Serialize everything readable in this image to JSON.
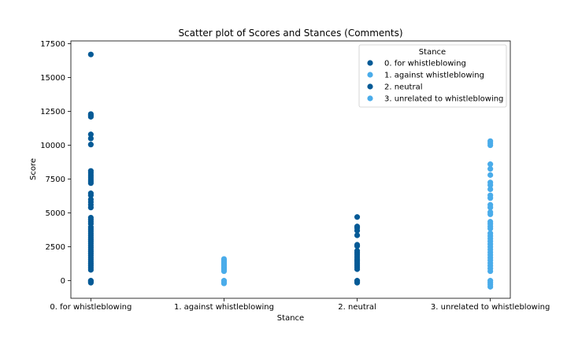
{
  "chart_data": {
    "type": "scatter",
    "title": "Scatter plot of Scores and Stances (Comments)",
    "xlabel": "Stance",
    "ylabel": "Score",
    "categories": [
      "0. for whistleblowing",
      "1. against whistleblowing",
      "2. neutral",
      "3. unrelated to whistleblowing"
    ],
    "ylim": [
      -1300,
      17700
    ],
    "yticks": [
      0,
      2500,
      5000,
      7500,
      10000,
      12500,
      15000,
      17500
    ],
    "ytick_labels": [
      "0",
      "2500",
      "5000",
      "7500",
      "10000",
      "12500",
      "15000",
      "17500"
    ],
    "grid": false,
    "legend": {
      "title": "Stance",
      "placement": "top-right"
    },
    "series": [
      {
        "name": "0. for whistleblowing",
        "color": "#045a96",
        "x": 0,
        "values": [
          16700,
          12300,
          12200,
          12100,
          10800,
          10500,
          10050,
          8100,
          7950,
          7800,
          7650,
          7500,
          7350,
          7200,
          6450,
          6300,
          6000,
          5800,
          5600,
          5400,
          4650,
          4500,
          4350,
          4200,
          3950,
          3800,
          3650,
          3500,
          3350,
          3200,
          3050,
          2900,
          2750,
          2600,
          2450,
          2300,
          2150,
          2000,
          1850,
          1700,
          1550,
          1400,
          1250,
          1100,
          950,
          800,
          0,
          -50,
          -150
        ]
      },
      {
        "name": "1. against whistleblowing",
        "color": "#4aacea",
        "x": 1,
        "values": [
          1600,
          1500,
          1400,
          1300,
          1200,
          1100,
          1000,
          900,
          800,
          700,
          0,
          -100,
          -200
        ]
      },
      {
        "name": "2. neutral",
        "color": "#045a96",
        "x": 2,
        "values": [
          4700,
          4000,
          3900,
          3700,
          3350,
          2650,
          2550,
          2200,
          2050,
          1900,
          1750,
          1600,
          1450,
          1300,
          1150,
          1000,
          850,
          0,
          -50,
          -150
        ]
      },
      {
        "name": "3. unrelated to whistleblowing",
        "color": "#4aacea",
        "x": 3,
        "values": [
          10300,
          10150,
          10000,
          8600,
          8250,
          7800,
          7250,
          7050,
          6750,
          6300,
          6100,
          5600,
          5400,
          5050,
          4900,
          4350,
          4200,
          4000,
          3850,
          3500,
          3300,
          3100,
          2900,
          2700,
          2500,
          2300,
          2100,
          1900,
          1700,
          1500,
          1300,
          1100,
          900,
          700,
          0,
          -150,
          -300,
          -450
        ]
      }
    ]
  }
}
